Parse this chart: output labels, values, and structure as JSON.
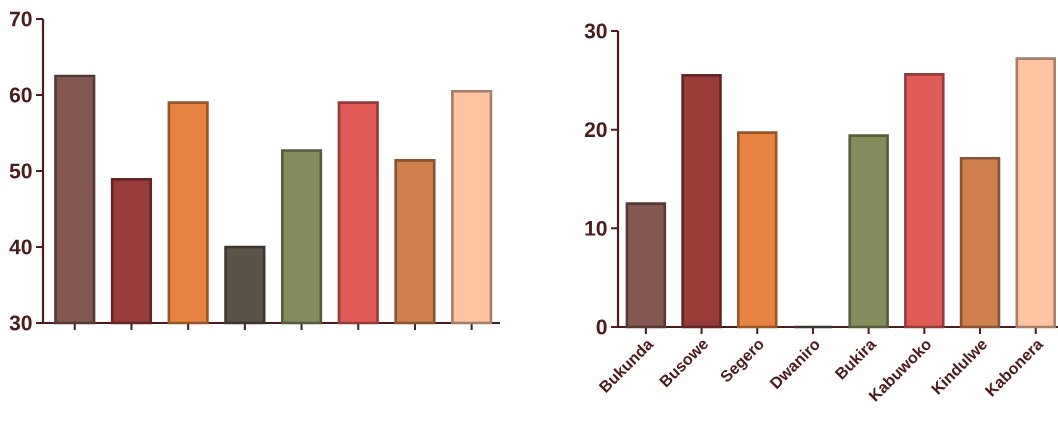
{
  "chart_data": [
    {
      "type": "bar",
      "categories": [
        null,
        null,
        null,
        null,
        null,
        null,
        null,
        null
      ],
      "values": [
        62.5,
        48.9,
        59.0,
        40.0,
        52.7,
        59.0,
        51.4,
        60.5
      ],
      "colors": [
        "#845850",
        "#993b38",
        "#e88341",
        "#5b5248",
        "#838c5b",
        "#e15b56",
        "#d07f4e",
        "#fec3a0"
      ],
      "ylim": [
        30,
        70
      ],
      "yticks": [
        30,
        40,
        50,
        60,
        70
      ],
      "grid": false,
      "tick_labels": "y"
    },
    {
      "type": "bar",
      "categories": [
        "Bukunda",
        "Busowe",
        "Segero",
        "Dwaniro",
        "Bukira",
        "Kabuwoko",
        "Kindulwe",
        "Kabonera"
      ],
      "values": [
        12.5,
        25.5,
        19.7,
        0,
        19.4,
        25.6,
        17.1,
        27.2
      ],
      "colors": [
        "#845850",
        "#993b38",
        "#e88341",
        "#5b5248",
        "#838c5b",
        "#e15b56",
        "#d07f4e",
        "#fec3a0"
      ],
      "ylim": [
        0,
        30
      ],
      "yticks": [
        0,
        10,
        20,
        30
      ],
      "grid": false
    }
  ]
}
